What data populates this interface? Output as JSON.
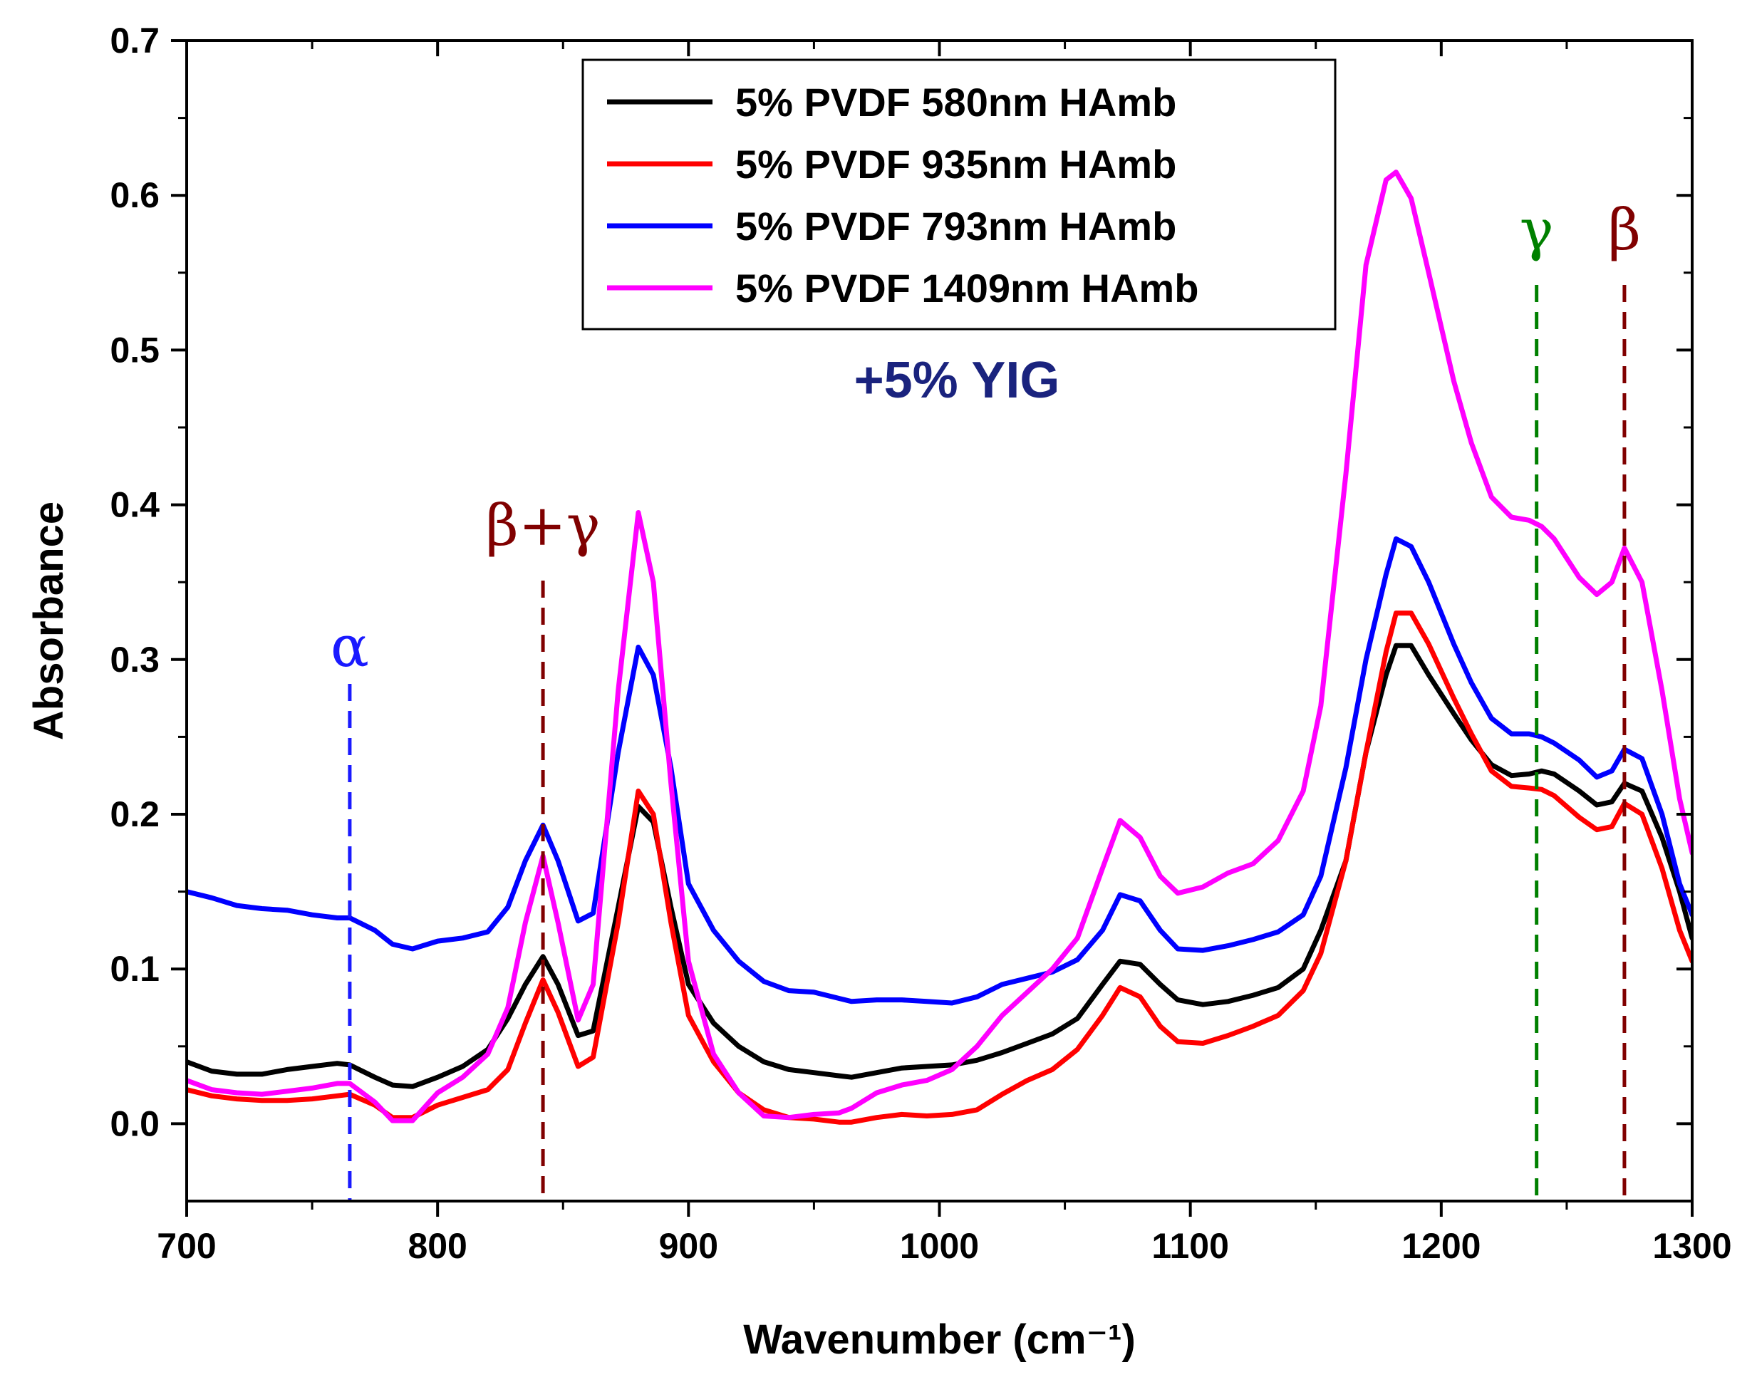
{
  "chart_data": {
    "type": "line",
    "title": "",
    "xlabel": "Wavenumber (cm⁻¹)",
    "ylabel": "Absorbance",
    "xlim": [
      700,
      1300
    ],
    "ylim": [
      -0.05,
      0.7
    ],
    "xticks": [
      700,
      800,
      900,
      1000,
      1100,
      1200,
      1300
    ],
    "xtick_labels": [
      "700",
      "800",
      "900",
      "1000",
      "1100",
      "1200",
      "1300"
    ],
    "yticks": [
      0.0,
      0.1,
      0.2,
      0.3,
      0.4,
      0.5,
      0.6,
      0.7
    ],
    "ytick_labels": [
      "0.0",
      "0.1",
      "0.2",
      "0.3",
      "0.4",
      "0.5",
      "0.6",
      "0.7"
    ],
    "grid": false,
    "legend_position": "top-center",
    "x": [
      700,
      710,
      720,
      730,
      740,
      750,
      760,
      765,
      775,
      782,
      790,
      800,
      810,
      820,
      828,
      835,
      842,
      848,
      856,
      862,
      872,
      880,
      886,
      893,
      900,
      910,
      920,
      930,
      940,
      950,
      960,
      965,
      975,
      985,
      995,
      1005,
      1015,
      1025,
      1035,
      1045,
      1055,
      1065,
      1072,
      1080,
      1088,
      1095,
      1105,
      1115,
      1125,
      1135,
      1145,
      1152,
      1162,
      1170,
      1178,
      1182,
      1188,
      1195,
      1205,
      1212,
      1220,
      1228,
      1235,
      1240,
      1245,
      1255,
      1262,
      1268,
      1273,
      1280,
      1288,
      1295,
      1300
    ],
    "series": [
      {
        "name": "5% PVDF 580nm HAmb",
        "color": "#000000",
        "values": [
          0.04,
          0.034,
          0.032,
          0.032,
          0.035,
          0.037,
          0.039,
          0.038,
          0.03,
          0.025,
          0.024,
          0.03,
          0.037,
          0.048,
          0.068,
          0.09,
          0.108,
          0.09,
          0.057,
          0.06,
          0.14,
          0.205,
          0.195,
          0.14,
          0.09,
          0.065,
          0.05,
          0.04,
          0.035,
          0.033,
          0.031,
          0.03,
          0.033,
          0.036,
          0.037,
          0.038,
          0.041,
          0.046,
          0.052,
          0.058,
          0.068,
          0.09,
          0.105,
          0.103,
          0.09,
          0.08,
          0.077,
          0.079,
          0.083,
          0.088,
          0.1,
          0.125,
          0.17,
          0.24,
          0.29,
          0.309,
          0.309,
          0.29,
          0.265,
          0.248,
          0.232,
          0.225,
          0.226,
          0.228,
          0.226,
          0.215,
          0.206,
          0.208,
          0.22,
          0.215,
          0.185,
          0.15,
          0.12
        ]
      },
      {
        "name": "5% PVDF 935nm HAmb",
        "color": "#ff0000",
        "values": [
          0.022,
          0.018,
          0.016,
          0.015,
          0.015,
          0.016,
          0.018,
          0.019,
          0.012,
          0.004,
          0.004,
          0.012,
          0.017,
          0.022,
          0.035,
          0.065,
          0.093,
          0.072,
          0.037,
          0.043,
          0.13,
          0.215,
          0.2,
          0.13,
          0.07,
          0.04,
          0.02,
          0.009,
          0.004,
          0.003,
          0.001,
          0.001,
          0.004,
          0.006,
          0.005,
          0.006,
          0.009,
          0.019,
          0.028,
          0.035,
          0.048,
          0.07,
          0.088,
          0.082,
          0.063,
          0.053,
          0.052,
          0.057,
          0.063,
          0.07,
          0.086,
          0.11,
          0.17,
          0.24,
          0.305,
          0.33,
          0.33,
          0.31,
          0.275,
          0.252,
          0.228,
          0.218,
          0.217,
          0.216,
          0.212,
          0.198,
          0.19,
          0.192,
          0.207,
          0.2,
          0.165,
          0.125,
          0.105
        ]
      },
      {
        "name": "5% PVDF 793nm HAmb",
        "color": "#0000ff",
        "values": [
          0.15,
          0.146,
          0.141,
          0.139,
          0.138,
          0.135,
          0.133,
          0.133,
          0.125,
          0.116,
          0.113,
          0.118,
          0.12,
          0.124,
          0.14,
          0.17,
          0.193,
          0.17,
          0.131,
          0.136,
          0.24,
          0.308,
          0.29,
          0.23,
          0.155,
          0.125,
          0.105,
          0.092,
          0.086,
          0.085,
          0.081,
          0.079,
          0.08,
          0.08,
          0.079,
          0.078,
          0.082,
          0.09,
          0.094,
          0.098,
          0.106,
          0.125,
          0.148,
          0.144,
          0.125,
          0.113,
          0.112,
          0.115,
          0.119,
          0.124,
          0.135,
          0.16,
          0.23,
          0.3,
          0.355,
          0.378,
          0.373,
          0.35,
          0.31,
          0.285,
          0.262,
          0.252,
          0.252,
          0.25,
          0.246,
          0.235,
          0.224,
          0.228,
          0.242,
          0.236,
          0.2,
          0.155,
          0.135
        ]
      },
      {
        "name": "5% PVDF 1409nm HAmb",
        "color": "#ff00ff",
        "values": [
          0.028,
          0.022,
          0.02,
          0.019,
          0.021,
          0.023,
          0.026,
          0.026,
          0.014,
          0.002,
          0.002,
          0.02,
          0.03,
          0.045,
          0.075,
          0.13,
          0.173,
          0.13,
          0.067,
          0.09,
          0.28,
          0.395,
          0.35,
          0.22,
          0.105,
          0.045,
          0.02,
          0.005,
          0.004,
          0.006,
          0.007,
          0.01,
          0.02,
          0.025,
          0.028,
          0.035,
          0.05,
          0.07,
          0.085,
          0.1,
          0.12,
          0.165,
          0.196,
          0.185,
          0.16,
          0.149,
          0.153,
          0.162,
          0.168,
          0.183,
          0.215,
          0.27,
          0.42,
          0.555,
          0.61,
          0.615,
          0.598,
          0.55,
          0.48,
          0.44,
          0.405,
          0.392,
          0.39,
          0.386,
          0.378,
          0.353,
          0.342,
          0.35,
          0.372,
          0.35,
          0.28,
          0.21,
          0.175
        ]
      }
    ],
    "annotations": [
      {
        "text": "α",
        "x": 765,
        "color": "#1a1aff"
      },
      {
        "text": "β+γ",
        "x": 842,
        "color": "#800000"
      },
      {
        "text": "γ",
        "x": 1238,
        "color": "#008000"
      },
      {
        "text": "β",
        "x": 1273,
        "color": "#800000"
      }
    ],
    "note": {
      "text": "+5% YIG",
      "color": "#1a237e"
    }
  }
}
